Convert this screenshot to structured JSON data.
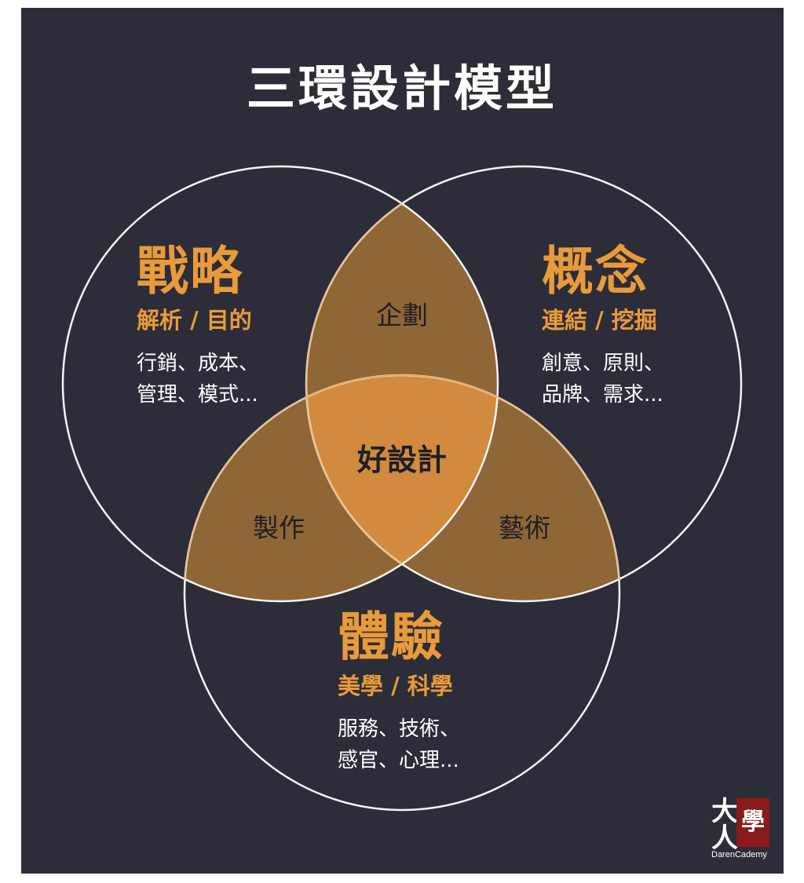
{
  "title": "三環設計模型",
  "circles": {
    "strategy": {
      "heading": "戰略",
      "subtitle": "解析 / 目的",
      "lines": [
        "行銷、成本、",
        "管理、模式..."
      ]
    },
    "concept": {
      "heading": "概念",
      "subtitle": "連結 / 挖掘",
      "lines": [
        "創意、原則、",
        "品牌、需求..."
      ]
    },
    "experience": {
      "heading": "體驗",
      "subtitle": "美學 / 科學",
      "lines": [
        "服務、技術、",
        "感官、心理..."
      ]
    }
  },
  "intersections": {
    "strategy_concept": "企劃",
    "strategy_experience": "製作",
    "concept_experience": "藝術",
    "center": "好設計"
  },
  "logo": {
    "chars": "大人",
    "seal": "學",
    "brand": "DarenCademy"
  },
  "colors": {
    "background": "#2c2d38",
    "accent": "#e99a3a",
    "pair_overlap": "#8f6636",
    "center_overlap": "#d18a3e",
    "circle_stroke": "#f4f4f4"
  }
}
